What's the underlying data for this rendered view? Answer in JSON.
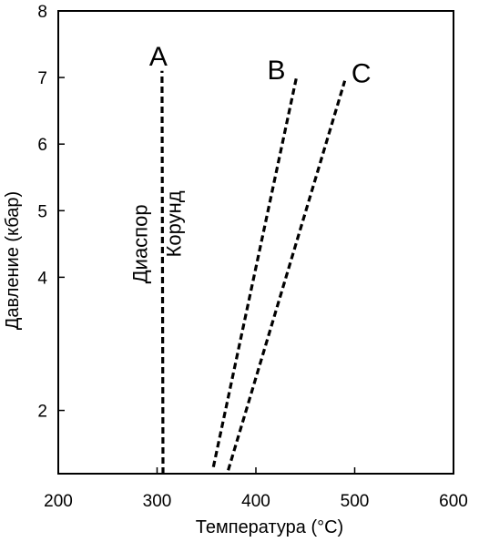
{
  "chart_data": {
    "type": "line",
    "title": "",
    "xlabel": "Температура (°C)",
    "ylabel": "Давление (кбар)",
    "xlim": [
      200,
      600
    ],
    "ylim": [
      1.05,
      8
    ],
    "x_ticks": [
      {
        "value": 200,
        "label": "200"
      },
      {
        "value": 300,
        "label": "300"
      },
      {
        "value": 400,
        "label": "400"
      },
      {
        "value": 500,
        "label": "500"
      },
      {
        "value": 600,
        "label": "600"
      }
    ],
    "y_ticks": [
      {
        "value": 2,
        "label": "2"
      },
      {
        "value": 4,
        "label": "4"
      },
      {
        "value": 5,
        "label": "5"
      },
      {
        "value": 6,
        "label": "6"
      },
      {
        "value": 7,
        "label": "7"
      },
      {
        "value": 8,
        "label": "8"
      }
    ],
    "series": [
      {
        "name": "A",
        "style": "dashed",
        "points": [
          [
            306,
            1.05
          ],
          [
            305,
            7.1
          ]
        ]
      },
      {
        "name": "B",
        "style": "dashed",
        "points": [
          [
            357,
            1.15
          ],
          [
            441,
            7.0
          ]
        ]
      },
      {
        "name": "C",
        "style": "dashed",
        "points": [
          [
            372,
            1.1
          ],
          [
            490,
            6.95
          ]
        ]
      }
    ],
    "annotations": [
      {
        "text": "Диаспор",
        "x": 290,
        "y": 4.5,
        "rotation": -90
      },
      {
        "text": "Корунд",
        "x": 324,
        "y": 4.8,
        "rotation": -90
      }
    ],
    "grid": false,
    "legend": "none"
  }
}
